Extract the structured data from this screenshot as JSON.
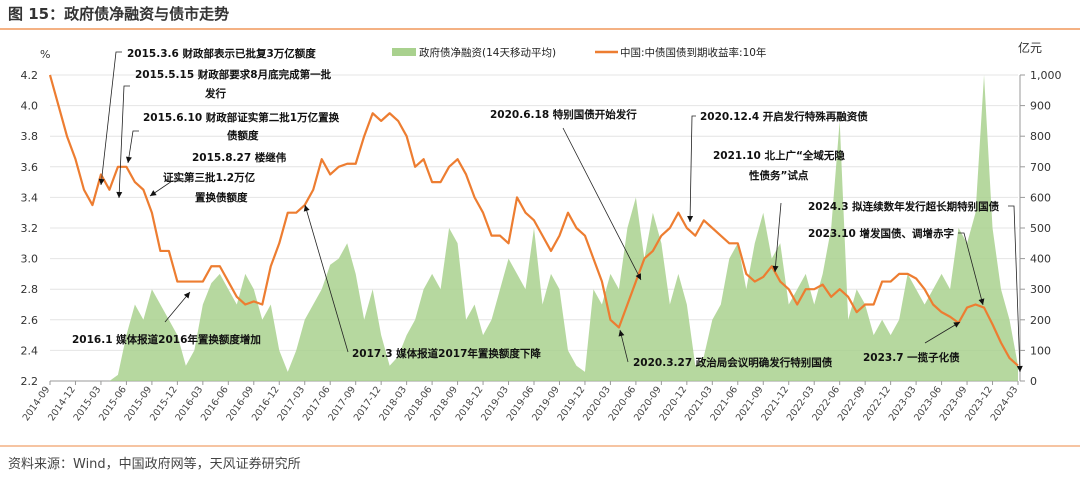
{
  "figure_title": "图 15：政府债净融资与债市走势",
  "source": "资料来源：Wind，中国政府网等，天风证券研究所",
  "colors": {
    "yield": "#ED7D31",
    "financing": "#A9D18E",
    "rule": "#F4B183"
  },
  "chart_data": {
    "type": "line+area",
    "left_axis": {
      "unit": "%",
      "ylim": [
        2.2,
        4.2
      ],
      "ticks": [
        "2.2",
        "2.4",
        "2.6",
        "2.8",
        "3.0",
        "3.2",
        "3.4",
        "3.6",
        "3.8",
        "4.0",
        "4.2"
      ]
    },
    "right_axis": {
      "unit": "亿元",
      "ylim": [
        0,
        1000
      ],
      "ticks": [
        "0",
        "100",
        "200",
        "300",
        "400",
        "500",
        "600",
        "700",
        "800",
        "900",
        "1,000"
      ]
    },
    "x_ticks": [
      "2014-09",
      "2014-12",
      "2015-03",
      "2015-06",
      "2015-09",
      "2015-12",
      "2016-03",
      "2016-06",
      "2016-09",
      "2016-12",
      "2017-03",
      "2017-06",
      "2017-09",
      "2017-12",
      "2018-03",
      "2018-06",
      "2018-09",
      "2018-12",
      "2019-03",
      "2019-06",
      "2019-09",
      "2019-12",
      "2020-03",
      "2020-06",
      "2020-09",
      "2020-12",
      "2021-03",
      "2021-06",
      "2021-09",
      "2021-12",
      "2022-03",
      "2022-06",
      "2022-09",
      "2022-12",
      "2023-03",
      "2023-06",
      "2023-09",
      "2023-12",
      "2024-03"
    ],
    "grid": "horizontal",
    "legend_position": "top",
    "x_start": "2014-09",
    "x_freq": "monthly",
    "series": [
      {
        "name": "政府债净融资(14天移动平均)",
        "axis": "right",
        "kind": "area",
        "values": [
          0,
          0,
          0,
          0,
          0,
          0,
          0,
          0,
          20,
          150,
          250,
          200,
          300,
          250,
          200,
          150,
          50,
          100,
          250,
          320,
          350,
          300,
          250,
          350,
          300,
          200,
          250,
          100,
          30,
          100,
          200,
          250,
          300,
          380,
          400,
          450,
          350,
          200,
          300,
          150,
          50,
          80,
          150,
          200,
          300,
          350,
          300,
          500,
          450,
          200,
          250,
          150,
          200,
          300,
          400,
          350,
          300,
          500,
          250,
          350,
          300,
          100,
          50,
          30,
          300,
          250,
          350,
          300,
          500,
          600,
          400,
          550,
          450,
          250,
          350,
          250,
          50,
          80,
          200,
          250,
          400,
          450,
          300,
          450,
          550,
          400,
          450,
          250,
          300,
          350,
          250,
          350,
          500,
          850,
          200,
          300,
          250,
          150,
          200,
          150,
          200,
          350,
          300,
          250,
          300,
          350,
          300,
          500,
          450,
          550,
          1000,
          500,
          300,
          200,
          50
        ]
      },
      {
        "name": "中国:中债国债到期收益率:10年",
        "axis": "left",
        "kind": "line",
        "values": [
          4.2,
          4.0,
          3.8,
          3.65,
          3.45,
          3.35,
          3.55,
          3.45,
          3.6,
          3.6,
          3.5,
          3.45,
          3.3,
          3.05,
          3.05,
          2.85,
          2.85,
          2.85,
          2.85,
          2.95,
          2.95,
          2.85,
          2.75,
          2.7,
          2.72,
          2.7,
          2.95,
          3.1,
          3.3,
          3.3,
          3.35,
          3.45,
          3.65,
          3.55,
          3.6,
          3.62,
          3.62,
          3.8,
          3.95,
          3.9,
          3.95,
          3.9,
          3.8,
          3.6,
          3.65,
          3.5,
          3.5,
          3.6,
          3.65,
          3.55,
          3.4,
          3.3,
          3.15,
          3.15,
          3.1,
          3.4,
          3.3,
          3.25,
          3.15,
          3.05,
          3.15,
          3.3,
          3.2,
          3.15,
          3.0,
          2.85,
          2.6,
          2.55,
          2.7,
          2.85,
          3.0,
          3.05,
          3.15,
          3.2,
          3.3,
          3.2,
          3.15,
          3.25,
          3.2,
          3.15,
          3.1,
          3.1,
          2.9,
          2.85,
          2.88,
          2.95,
          2.85,
          2.8,
          2.7,
          2.8,
          2.8,
          2.83,
          2.75,
          2.8,
          2.75,
          2.65,
          2.7,
          2.7,
          2.85,
          2.85,
          2.9,
          2.9,
          2.87,
          2.8,
          2.7,
          2.65,
          2.62,
          2.58,
          2.68,
          2.7,
          2.68,
          2.57,
          2.45,
          2.35,
          2.3
        ]
      }
    ],
    "annotations": [
      {
        "lines": [
          "2015.3.6 财政部表示已批复3万亿额度"
        ]
      },
      {
        "lines": [
          "2015.5.15 财政部要求8月底完成第一批",
          "发行"
        ]
      },
      {
        "lines": [
          "2015.6.10 财政部证实第二批1万亿置换",
          "债额度"
        ]
      },
      {
        "lines": [
          "2015.8.27 楼继伟",
          "证实第三批1.2万亿",
          "置换债额度"
        ]
      },
      {
        "lines": [
          "2016.1 媒体报道2016年置换额度增加"
        ]
      },
      {
        "lines": [
          "2017.3 媒体报道2017年置换额度下降"
        ]
      },
      {
        "lines": [
          "2020.6.18 特别国债开始发行"
        ]
      },
      {
        "lines": [
          "2020.12.4 开启发行特殊再融资债"
        ]
      },
      {
        "lines": [
          "2021.10 北上广“全域无隐",
          "性债务”试点"
        ]
      },
      {
        "lines": [
          "2024.3 拟连续数年发行超长期特别国债"
        ]
      },
      {
        "lines": [
          "2023.10 增发国债、调增赤字"
        ]
      },
      {
        "lines": [
          "2023.7 一揽子化债"
        ]
      },
      {
        "lines": [
          "2020.3.27 政治局会议明确发行特别国债"
        ]
      }
    ]
  }
}
